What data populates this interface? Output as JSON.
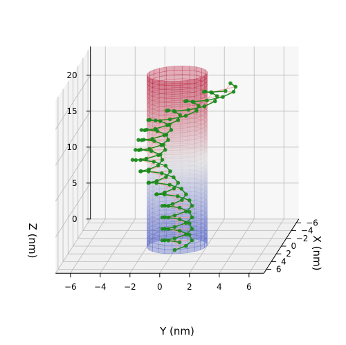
{
  "chart_data": {
    "type": "scatter",
    "projection": "3d",
    "title": "",
    "xlabel": "X (nm)",
    "ylabel": "Y (nm)",
    "zlabel": "Z (nm)",
    "x_ticks": [
      "−6",
      "−4",
      "−2",
      "0",
      "2",
      "4",
      "6"
    ],
    "y_ticks": [
      "−6",
      "−4",
      "−2",
      "0",
      "2",
      "4",
      "6"
    ],
    "z_ticks": [
      "0",
      "5",
      "10",
      "15",
      "20"
    ],
    "xlim": [
      -7,
      7
    ],
    "ylim": [
      -7,
      7
    ],
    "zlim": [
      0,
      24
    ],
    "grid": true,
    "cylinder": {
      "radius": 2,
      "z_range": [
        0,
        24
      ],
      "colormap": "coolwarm",
      "color_bottom": "#3b4cc0",
      "color_mid": "#dddddd",
      "color_top": "#b40426"
    },
    "helix": {
      "strand_color": "#1a8a1a",
      "rung_color": "#f4a0a0",
      "radius": 1.0,
      "turns": 7.5,
      "z_start": 0,
      "z_end": 24,
      "path_start": [
        0,
        0
      ],
      "path_end": [
        -2,
        5
      ],
      "lean_x": [
        0,
        0,
        0,
        1.5,
        3.5
      ],
      "lean_y": [
        0,
        0,
        -2,
        -1,
        4
      ]
    }
  }
}
